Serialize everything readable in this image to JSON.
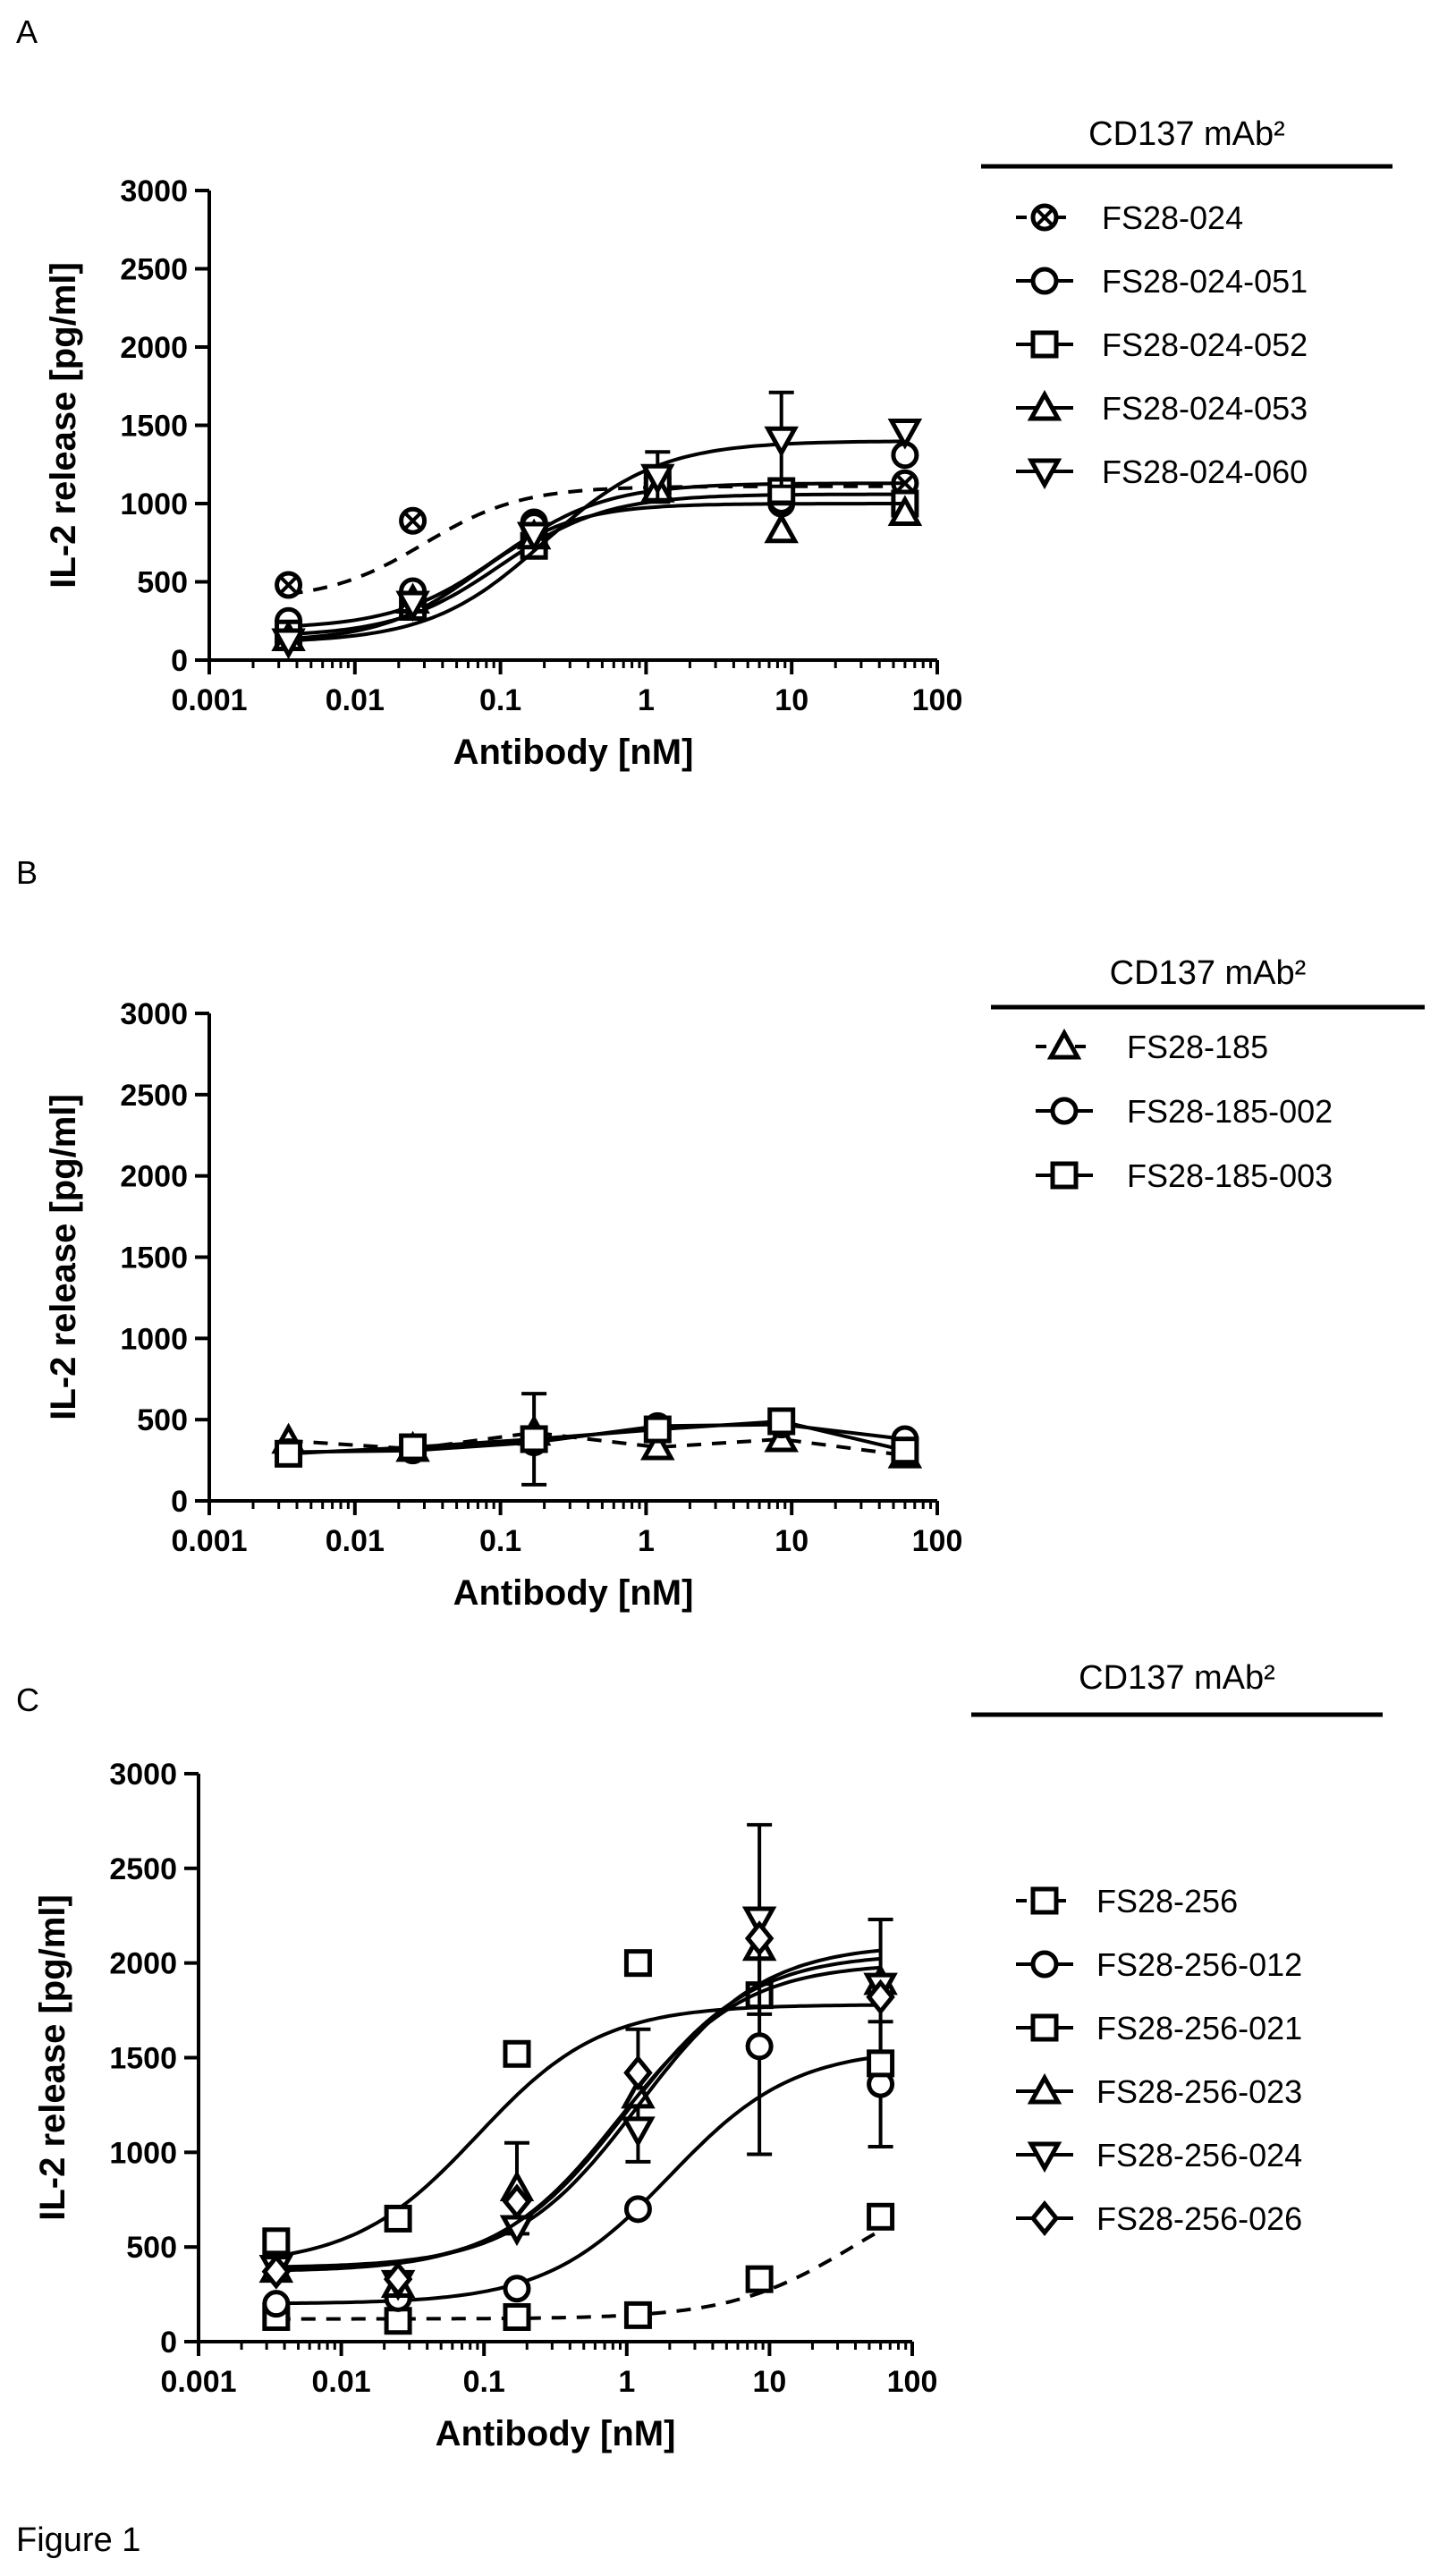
{
  "figure_caption": "Figure 1",
  "chart_data": [
    {
      "panel": "A",
      "type": "line",
      "xscale": "log",
      "xlabel": "Antibody [nM]",
      "ylabel": "IL-2 release [pg/ml]",
      "xlim": [
        0.001,
        100
      ],
      "ylim": [
        0,
        3000
      ],
      "xticks": [
        "0.001",
        "0.01",
        "0.1",
        "1",
        "10",
        "100"
      ],
      "yticks": [
        "0",
        "500",
        "1000",
        "1500",
        "2000",
        "2500",
        "3000"
      ],
      "legend_title": "CD137 mAb²",
      "legend_position": "right",
      "x": [
        0.0035,
        0.025,
        0.17,
        1.2,
        8.5,
        60
      ],
      "series": [
        {
          "name": "FS28-024",
          "marker": "circle-x",
          "fill": "none",
          "dashed": true,
          "values": [
            480,
            890,
            880,
            1130,
            1000,
            1130
          ],
          "errors": [
            0,
            0,
            0,
            0,
            0,
            0
          ],
          "fit": {
            "bottom": 380,
            "top": 1110,
            "ec50": 0.03,
            "hill": 1.3
          }
        },
        {
          "name": "FS28-024-051",
          "marker": "circle",
          "fill": "none",
          "dashed": false,
          "values": [
            250,
            440,
            860,
            1160,
            1020,
            1310
          ],
          "errors": [
            0,
            0,
            0,
            0,
            0,
            0
          ],
          "fit": {
            "bottom": 200,
            "top": 1130,
            "ec50": 0.1,
            "hill": 1.2
          }
        },
        {
          "name": "FS28-024-052",
          "marker": "square",
          "fill": "none",
          "dashed": false,
          "values": [
            170,
            340,
            730,
            1140,
            1080,
            1000
          ],
          "errors": [
            0,
            0,
            0,
            0,
            0,
            0
          ],
          "fit": {
            "bottom": 150,
            "top": 1060,
            "ec50": 0.1,
            "hill": 1.2
          }
        },
        {
          "name": "FS28-024-053",
          "marker": "triangle-up",
          "fill": "none",
          "dashed": false,
          "values": [
            140,
            380,
            790,
            1090,
            830,
            940
          ],
          "errors": [
            0,
            0,
            0,
            0,
            0,
            0
          ],
          "fit": {
            "bottom": 120,
            "top": 1000,
            "ec50": 0.07,
            "hill": 1.3
          }
        },
        {
          "name": "FS28-024-060",
          "marker": "triangle-down",
          "fill": "none",
          "dashed": false,
          "values": [
            120,
            360,
            800,
            1170,
            1410,
            1460
          ],
          "errors": [
            0,
            0,
            0,
            160,
            300,
            0
          ],
          "fit": {
            "bottom": 110,
            "top": 1400,
            "ec50": 0.2,
            "hill": 1.1
          }
        }
      ]
    },
    {
      "panel": "B",
      "type": "line",
      "xscale": "log",
      "xlabel": "Antibody [nM]",
      "ylabel": "IL-2 release [pg/ml]",
      "xlim": [
        0.001,
        100
      ],
      "ylim": [
        0,
        3000
      ],
      "xticks": [
        "0.001",
        "0.01",
        "0.1",
        "1",
        "10",
        "100"
      ],
      "yticks": [
        "0",
        "500",
        "1000",
        "1500",
        "2000",
        "2500",
        "3000"
      ],
      "legend_title": "CD137 mAb²",
      "legend_position": "right",
      "x": [
        0.0035,
        0.025,
        0.17,
        1.2,
        8.5,
        60
      ],
      "series": [
        {
          "name": "FS28-185",
          "marker": "triangle-up",
          "fill": "none",
          "dashed": true,
          "values": [
            370,
            320,
            420,
            330,
            380,
            280
          ],
          "errors": [
            0,
            0,
            0,
            0,
            0,
            0
          ]
        },
        {
          "name": "FS28-185-002",
          "marker": "circle",
          "fill": "none",
          "dashed": false,
          "values": [
            300,
            310,
            360,
            460,
            470,
            380
          ],
          "errors": [
            0,
            0,
            0,
            0,
            0,
            0
          ]
        },
        {
          "name": "FS28-185-003",
          "marker": "square",
          "fill": "none",
          "dashed": false,
          "values": [
            290,
            330,
            380,
            440,
            490,
            310
          ],
          "errors": [
            0,
            0,
            280,
            0,
            0,
            0
          ]
        }
      ]
    },
    {
      "panel": "C",
      "type": "line",
      "xscale": "log",
      "xlabel": "Antibody [nM]",
      "ylabel": "IL-2 release [pg/ml]",
      "xlim": [
        0.001,
        100
      ],
      "ylim": [
        0,
        3000
      ],
      "xticks": [
        "0.001",
        "0.01",
        "0.1",
        "1",
        "10",
        "100"
      ],
      "yticks": [
        "0",
        "500",
        "1000",
        "1500",
        "2000",
        "2500",
        "3000"
      ],
      "legend_title": "CD137 mAb²",
      "legend_position": "right",
      "x": [
        0.0035,
        0.025,
        0.17,
        1.2,
        8.5,
        60
      ],
      "series": [
        {
          "name": "FS28-256",
          "marker": "square",
          "fill": "none",
          "dashed": true,
          "values": [
            130,
            110,
            130,
            140,
            330,
            660
          ],
          "errors": [
            0,
            0,
            0,
            0,
            0,
            0
          ],
          "fit": {
            "bottom": 120,
            "top": 900,
            "ec50": 40,
            "hill": 1.0
          }
        },
        {
          "name": "FS28-256-012",
          "marker": "circle",
          "fill": "none",
          "dashed": false,
          "values": [
            200,
            230,
            280,
            700,
            1560,
            1360
          ],
          "errors": [
            0,
            0,
            0,
            0,
            570,
            330
          ],
          "fit": {
            "bottom": 200,
            "top": 1550,
            "ec50": 2.0,
            "hill": 1.0
          }
        },
        {
          "name": "FS28-256-021",
          "marker": "square",
          "fill": "none",
          "dashed": false,
          "values": [
            530,
            650,
            1520,
            2000,
            1830,
            1470
          ],
          "errors": [
            0,
            0,
            0,
            0,
            0,
            0
          ],
          "fit": {
            "bottom": 400,
            "top": 1780,
            "ec50": 0.09,
            "hill": 1.0
          }
        },
        {
          "name": "FS28-256-023",
          "marker": "triangle-up",
          "fill": "none",
          "dashed": false,
          "values": [
            380,
            300,
            810,
            1300,
            2080,
            1900
          ],
          "errors": [
            0,
            0,
            240,
            350,
            0,
            0
          ],
          "fit": {
            "bottom": 380,
            "top": 2050,
            "ec50": 1.0,
            "hill": 1.0
          }
        },
        {
          "name": "FS28-256-024",
          "marker": "triangle-down",
          "fill": "none",
          "dashed": false,
          "values": [
            390,
            310,
            600,
            1120,
            2230,
            1880
          ],
          "errors": [
            0,
            0,
            0,
            0,
            500,
            350
          ],
          "fit": {
            "bottom": 390,
            "top": 2100,
            "ec50": 1.2,
            "hill": 1.0
          }
        },
        {
          "name": "FS28-256-026",
          "marker": "diamond",
          "fill": "none",
          "dashed": false,
          "values": [
            370,
            330,
            740,
            1420,
            2130,
            1820
          ],
          "errors": [
            0,
            0,
            0,
            0,
            0,
            0
          ],
          "fit": {
            "bottom": 370,
            "top": 2000,
            "ec50": 0.9,
            "hill": 1.0
          }
        }
      ]
    }
  ]
}
